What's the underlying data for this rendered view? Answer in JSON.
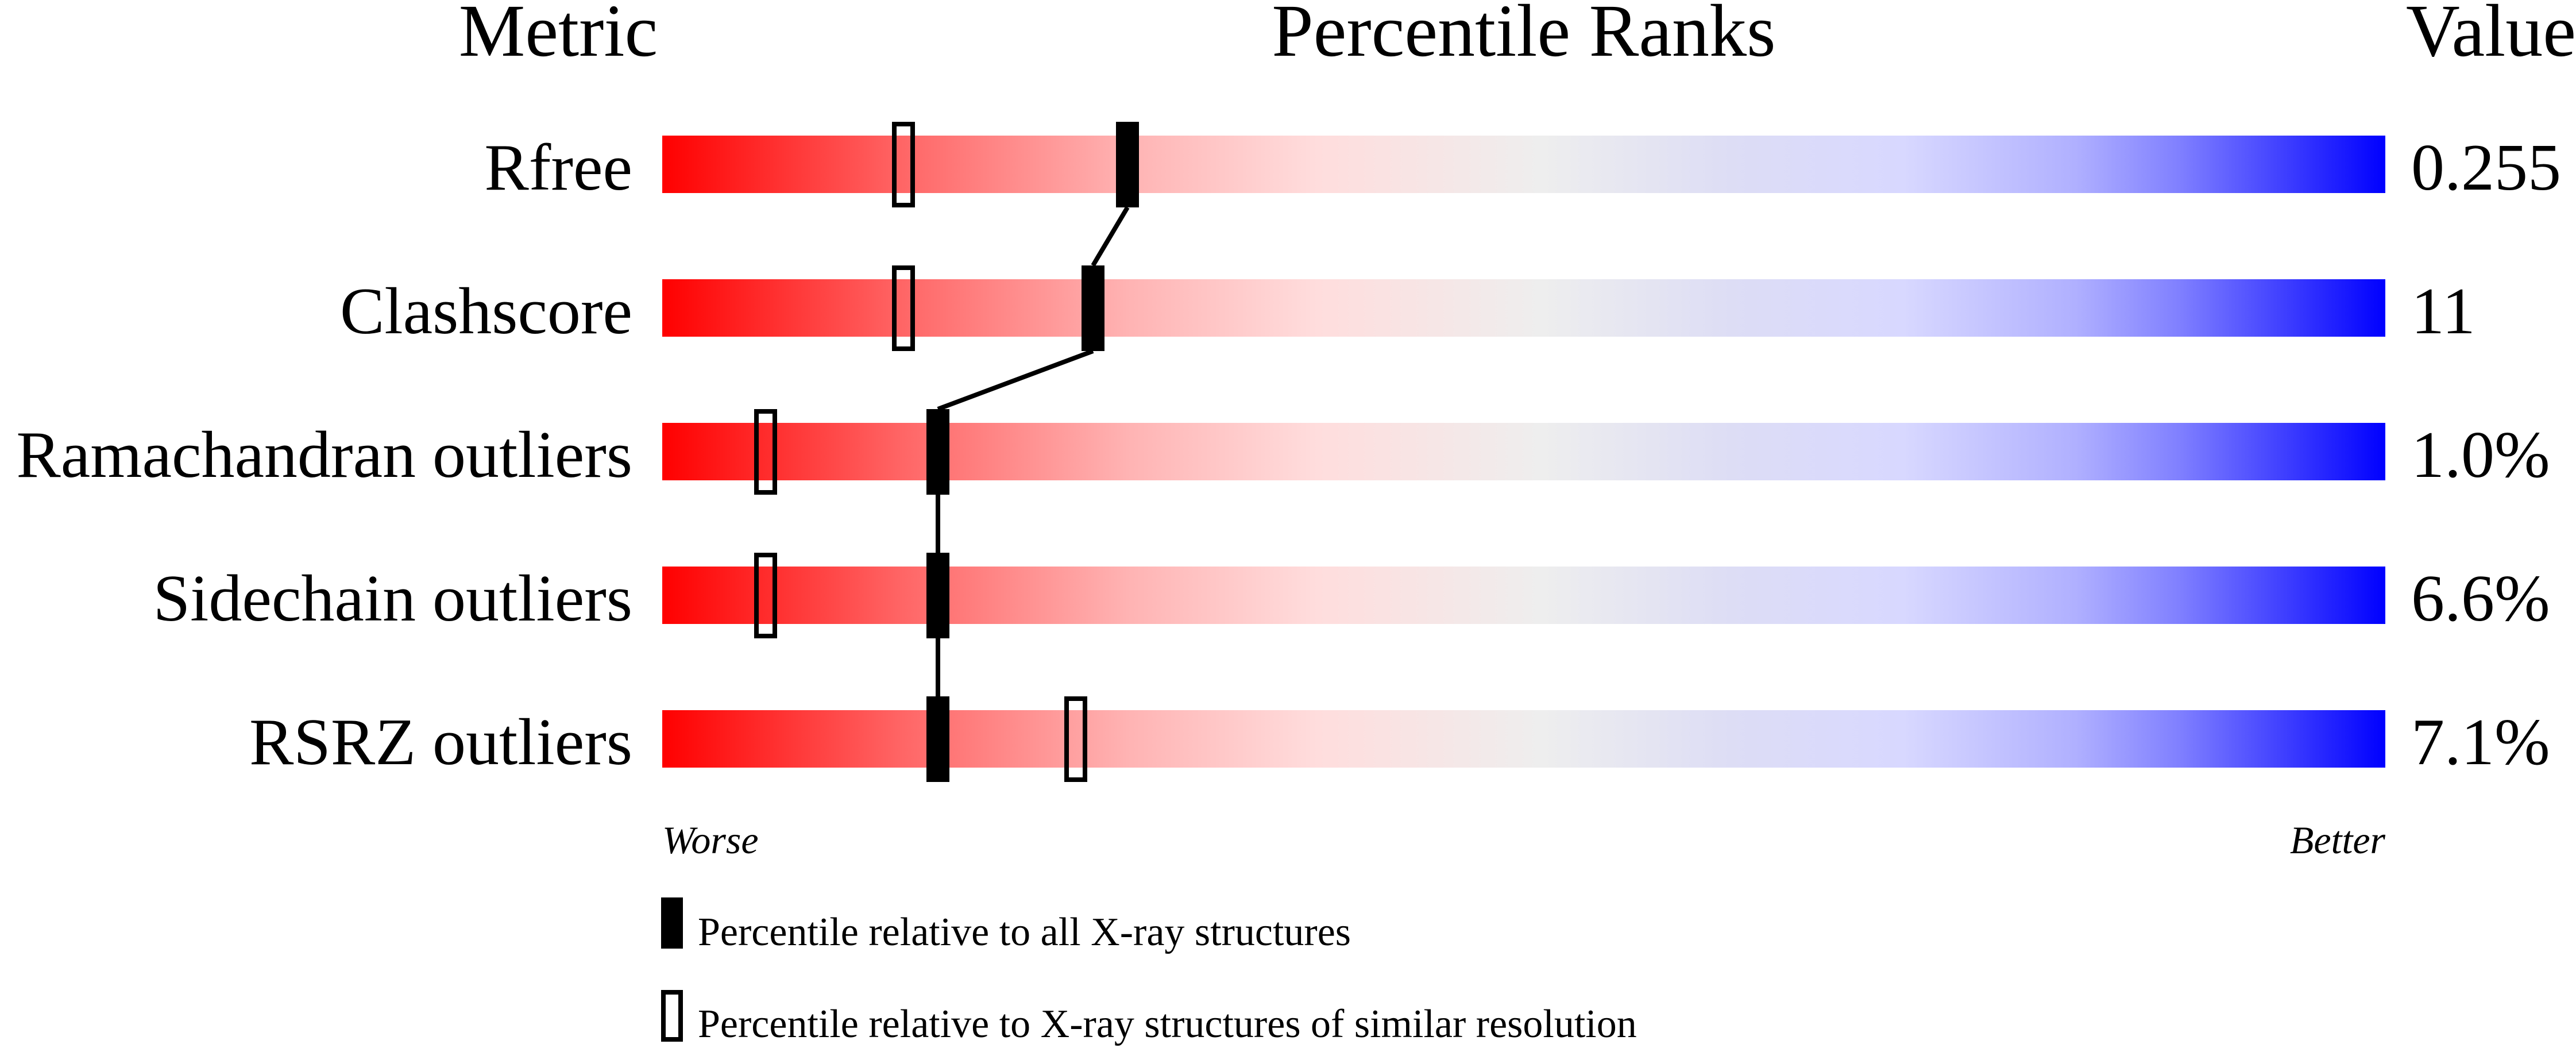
{
  "chart_data": {
    "type": "percentile-bar",
    "headers": {
      "metric": "Metric",
      "percentile": "Percentile Ranks",
      "value": "Value"
    },
    "axis_range": [
      0,
      100
    ],
    "scale_ends": {
      "worse": "Worse",
      "better": "Better"
    },
    "gradient_colors": [
      "#ff0000",
      "#ff6666",
      "#ffb3b3",
      "#ffdddd",
      "#eeeeee",
      "#ddddf5",
      "#d8d8ff",
      "#b0b0ff",
      "#8080ff",
      "#0000ff"
    ],
    "metrics": [
      {
        "name": "Rfree",
        "value": "0.255",
        "percentile_all": 27,
        "percentile_similar": 14
      },
      {
        "name": "Clashscore",
        "value": "11",
        "percentile_all": 25,
        "percentile_similar": 14
      },
      {
        "name": "Ramachandran outliers",
        "value": "1.0%",
        "percentile_all": 16,
        "percentile_similar": 6
      },
      {
        "name": "Sidechain outliers",
        "value": "6.6%",
        "percentile_all": 16,
        "percentile_similar": 6
      },
      {
        "name": "RSRZ outliers",
        "value": "7.1%",
        "percentile_all": 16,
        "percentile_similar": 24
      }
    ],
    "legend": [
      {
        "marker": "filled",
        "label": "Percentile relative to all X-ray structures"
      },
      {
        "marker": "open",
        "label": "Percentile relative to X-ray structures of similar resolution"
      }
    ]
  }
}
